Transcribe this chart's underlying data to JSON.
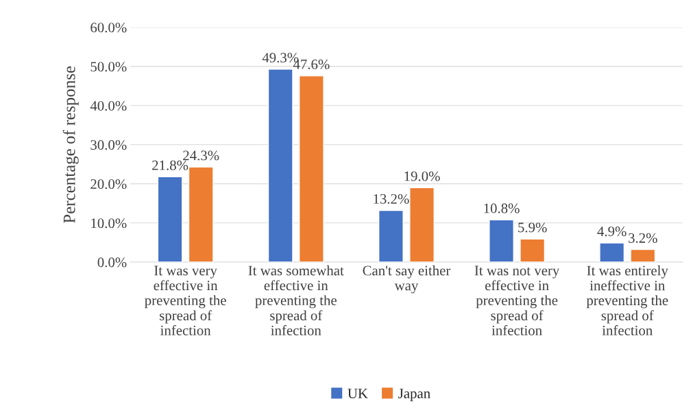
{
  "chart_data": {
    "type": "bar",
    "ylabel": "Percentage of response",
    "categories": [
      "It was very\neffective in\npreventing the\nspread of\ninfection",
      "It was somewhat\neffective in\npreventing the\nspread of\ninfection",
      "Can't say either\nway",
      "It was not very\neffective in\npreventing the\nspread of\ninfection",
      "It was entirely\nineffective in\npreventing the\nspread of\ninfection"
    ],
    "series": [
      {
        "name": "UK",
        "color": "#4472c4",
        "values": [
          21.8,
          49.3,
          13.2,
          10.8,
          4.9
        ],
        "value_labels": [
          "21.8%",
          "49.3%",
          "13.2%",
          "10.8%",
          "4.9%"
        ]
      },
      {
        "name": "Japan",
        "color": "#ed7d31",
        "values": [
          24.3,
          47.6,
          19.0,
          5.9,
          3.2
        ],
        "value_labels": [
          "24.3%",
          "47.6%",
          "19.0%",
          "5.9%",
          "3.2%"
        ]
      }
    ],
    "ylim": [
      0,
      60
    ],
    "yticks": [
      {
        "value": 0,
        "label": "0.0%"
      },
      {
        "value": 10,
        "label": "10.0%"
      },
      {
        "value": 20,
        "label": "20.0%"
      },
      {
        "value": 30,
        "label": "30.0%"
      },
      {
        "value": 40,
        "label": "40.0%"
      },
      {
        "value": 50,
        "label": "50.0%"
      },
      {
        "value": 60,
        "label": "60.0%"
      }
    ],
    "grid": "y",
    "legend": "bottom"
  }
}
